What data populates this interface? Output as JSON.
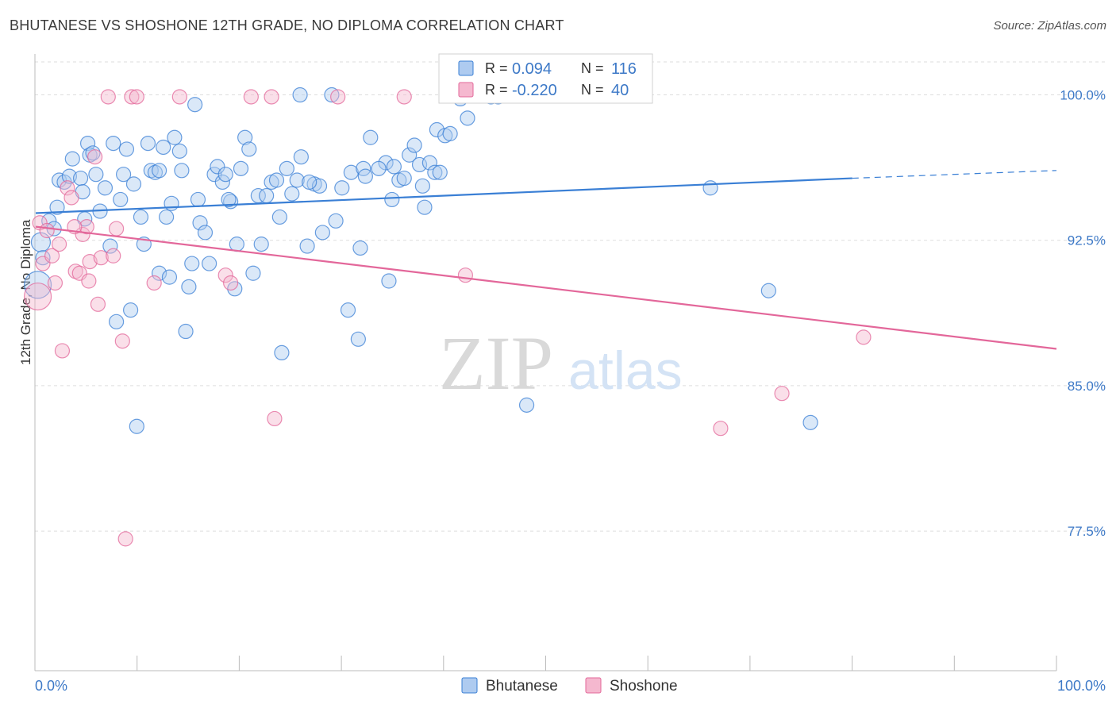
{
  "title": "BHUTANESE VS SHOSHONE 12TH GRADE, NO DIPLOMA CORRELATION CHART",
  "source": "Source: ZipAtlas.com",
  "watermark": {
    "zip": "ZIP",
    "atlas": "atlas"
  },
  "colors": {
    "blue": "#3a7fd5",
    "blue_fill": "#aecbf0",
    "pink": "#e3679a",
    "pink_fill": "#f5b8cf",
    "tick_label": "#3d79c7",
    "grid": "#dddddd"
  },
  "legend": {
    "rows": [
      {
        "series": "Bhutanese",
        "r_label": "R =",
        "r_value": "0.094",
        "n_label": "N =",
        "n_value": "116"
      },
      {
        "series": "Shoshone",
        "r_label": "R =",
        "r_value": "-0.220",
        "n_label": "N =",
        "n_value": "40"
      }
    ]
  },
  "bottom_legend": [
    "Bhutanese",
    "Shoshone"
  ],
  "chart_data": {
    "type": "scatter",
    "title": "BHUTANESE VS SHOSHONE 12TH GRADE, NO DIPLOMA CORRELATION CHART",
    "xlabel": "",
    "ylabel": "12th Grade, No Diploma",
    "xlim": [
      0,
      100
    ],
    "ylim": [
      70.3,
      101.7
    ],
    "x_tick_labels": [
      "0.0%",
      "100.0%"
    ],
    "y_ticks": [
      100.0,
      92.5,
      85.0,
      77.5
    ],
    "y_tick_labels": [
      "100.0%",
      "92.5%",
      "85.0%",
      "77.5%"
    ],
    "grid": true,
    "legend_position": "top-center",
    "series": [
      {
        "name": "Bhutanese",
        "color": "#3a7fd5",
        "trend": {
          "x0": 0,
          "y0": 93.9,
          "x1": 80,
          "y1": 95.7,
          "dashed_to_x": 100,
          "dashed_to_y": 96.1
        },
        "points": [
          [
            0.2,
            90.2
          ],
          [
            0.5,
            92.4
          ],
          [
            0.7,
            91.6
          ],
          [
            1.3,
            93.5
          ],
          [
            1.8,
            93.1
          ],
          [
            2.1,
            94.2
          ],
          [
            2.3,
            95.6
          ],
          [
            2.8,
            95.5
          ],
          [
            3.3,
            95.8
          ],
          [
            3.6,
            96.7
          ],
          [
            4.4,
            95.7
          ],
          [
            4.6,
            95.0
          ],
          [
            4.8,
            93.6
          ],
          [
            5.1,
            97.5
          ],
          [
            5.3,
            96.9
          ],
          [
            5.6,
            97.0
          ],
          [
            5.9,
            95.9
          ],
          [
            6.3,
            94.0
          ],
          [
            6.8,
            95.2
          ],
          [
            7.3,
            92.2
          ],
          [
            7.6,
            97.5
          ],
          [
            7.9,
            88.3
          ],
          [
            8.3,
            94.6
          ],
          [
            8.6,
            95.9
          ],
          [
            8.9,
            97.2
          ],
          [
            9.3,
            88.9
          ],
          [
            9.6,
            95.4
          ],
          [
            9.9,
            82.9
          ],
          [
            10.3,
            93.7
          ],
          [
            10.6,
            92.3
          ],
          [
            11.0,
            97.5
          ],
          [
            11.3,
            96.1
          ],
          [
            11.7,
            96.0
          ],
          [
            12.1,
            90.8
          ],
          [
            12.5,
            97.3
          ],
          [
            12.8,
            93.7
          ],
          [
            13.1,
            90.6
          ],
          [
            13.3,
            94.4
          ],
          [
            13.6,
            97.8
          ],
          [
            14.1,
            97.1
          ],
          [
            14.3,
            96.1
          ],
          [
            14.7,
            87.8
          ],
          [
            15.0,
            90.1
          ],
          [
            15.3,
            91.3
          ],
          [
            15.6,
            99.5
          ],
          [
            15.9,
            94.6
          ],
          [
            16.1,
            93.4
          ],
          [
            16.6,
            92.9
          ],
          [
            17.0,
            91.3
          ],
          [
            17.5,
            95.9
          ],
          [
            17.8,
            96.3
          ],
          [
            18.3,
            95.5
          ],
          [
            18.6,
            95.9
          ],
          [
            19.1,
            94.5
          ],
          [
            19.5,
            90.0
          ],
          [
            19.7,
            92.3
          ],
          [
            20.1,
            96.2
          ],
          [
            20.5,
            97.8
          ],
          [
            20.9,
            97.2
          ],
          [
            21.3,
            90.8
          ],
          [
            21.8,
            94.8
          ],
          [
            22.1,
            92.3
          ],
          [
            22.6,
            94.8
          ],
          [
            23.1,
            95.5
          ],
          [
            23.6,
            95.6
          ],
          [
            23.9,
            93.7
          ],
          [
            24.1,
            86.7
          ],
          [
            24.6,
            96.2
          ],
          [
            25.1,
            94.9
          ],
          [
            25.9,
            100.0
          ],
          [
            25.6,
            95.6
          ],
          [
            26.0,
            96.8
          ],
          [
            26.6,
            92.2
          ],
          [
            27.3,
            95.4
          ],
          [
            27.8,
            95.3
          ],
          [
            28.1,
            92.9
          ],
          [
            29.0,
            100.0
          ],
          [
            29.4,
            93.5
          ],
          [
            30.0,
            95.2
          ],
          [
            30.6,
            88.9
          ],
          [
            30.9,
            96.0
          ],
          [
            31.6,
            87.4
          ],
          [
            31.8,
            92.1
          ],
          [
            32.1,
            96.2
          ],
          [
            32.3,
            95.8
          ],
          [
            32.8,
            97.8
          ],
          [
            34.3,
            96.5
          ],
          [
            34.9,
            94.6
          ],
          [
            34.6,
            90.4
          ],
          [
            35.1,
            96.3
          ],
          [
            35.6,
            95.6
          ],
          [
            36.1,
            95.7
          ],
          [
            36.6,
            96.9
          ],
          [
            37.1,
            97.4
          ],
          [
            37.6,
            96.4
          ],
          [
            37.9,
            95.3
          ],
          [
            38.1,
            94.2
          ],
          [
            38.6,
            96.5
          ],
          [
            39.1,
            96.0
          ],
          [
            39.3,
            98.2
          ],
          [
            39.6,
            96.0
          ],
          [
            40.1,
            97.9
          ],
          [
            40.6,
            98.0
          ],
          [
            41.6,
            99.8
          ],
          [
            42.3,
            98.8
          ],
          [
            44.1,
            100.0
          ],
          [
            44.6,
            99.9
          ],
          [
            45.3,
            99.9
          ],
          [
            48.1,
            84.0
          ],
          [
            66.1,
            95.2
          ],
          [
            71.8,
            89.9
          ],
          [
            75.9,
            83.1
          ],
          [
            12.1,
            96.1
          ],
          [
            18.9,
            94.6
          ],
          [
            26.8,
            95.5
          ],
          [
            33.6,
            96.2
          ]
        ]
      },
      {
        "name": "Shoshone",
        "color": "#e3679a",
        "trend": {
          "x0": 0,
          "y0": 93.2,
          "x1": 100,
          "y1": 86.9
        },
        "points": [
          [
            0.2,
            89.6
          ],
          [
            0.4,
            93.4
          ],
          [
            0.7,
            91.3
          ],
          [
            1.1,
            93.0
          ],
          [
            1.6,
            91.7
          ],
          [
            1.9,
            90.3
          ],
          [
            2.3,
            92.3
          ],
          [
            2.6,
            86.8
          ],
          [
            3.1,
            95.2
          ],
          [
            3.5,
            94.7
          ],
          [
            3.9,
            90.9
          ],
          [
            4.3,
            90.8
          ],
          [
            4.6,
            92.8
          ],
          [
            5.0,
            93.2
          ],
          [
            5.3,
            91.4
          ],
          [
            5.8,
            96.8
          ],
          [
            6.1,
            89.2
          ],
          [
            6.4,
            91.6
          ],
          [
            7.1,
            99.9
          ],
          [
            7.6,
            91.7
          ],
          [
            7.9,
            93.1
          ],
          [
            8.5,
            87.3
          ],
          [
            8.8,
            77.1
          ],
          [
            9.4,
            99.9
          ],
          [
            9.9,
            99.9
          ],
          [
            11.6,
            90.3
          ],
          [
            14.1,
            99.9
          ],
          [
            18.6,
            90.7
          ],
          [
            19.1,
            90.3
          ],
          [
            21.1,
            99.9
          ],
          [
            23.1,
            99.9
          ],
          [
            23.4,
            83.3
          ],
          [
            29.6,
            99.9
          ],
          [
            36.1,
            99.9
          ],
          [
            42.1,
            90.7
          ],
          [
            73.1,
            84.6
          ],
          [
            81.1,
            87.5
          ],
          [
            67.1,
            82.8
          ],
          [
            3.8,
            93.2
          ],
          [
            5.2,
            90.4
          ]
        ]
      }
    ]
  }
}
